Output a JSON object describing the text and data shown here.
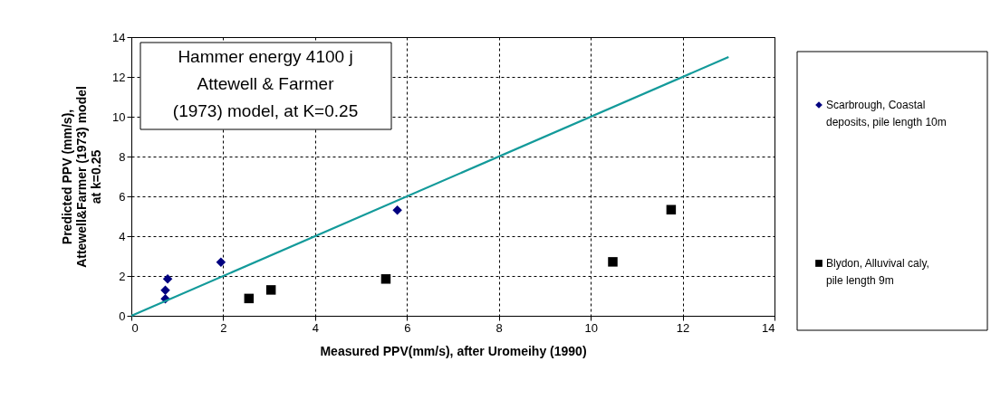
{
  "chart_data": {
    "type": "scatter",
    "xlabel": "Measured PPV(mm/s), after Uromeihy (1990)",
    "ylabel": "Predicted PPV (mm/s),\nAttewell&Farmer (1973) model\nat k=0.25",
    "annotations": [
      "Hammer energy 4100 j\nAttewell & Farmer\n(1973) model, at K=0.25"
    ],
    "series": [
      {
        "name": "Scarbrough, Coastal deposits, pile length 10m",
        "color": "#000080",
        "marker": "diamond",
        "x": [
          0.74,
          0.74,
          0.79,
          1.95,
          5.79
        ],
        "values": [
          0.85,
          1.28,
          1.85,
          2.69,
          5.31
        ]
      },
      {
        "name": "Blydon, Alluvival caly, pile length 9m",
        "color": "#000000",
        "marker": "square",
        "x": [
          2.56,
          3.04,
          5.54,
          10.48,
          11.75
        ],
        "values": [
          0.87,
          1.3,
          1.85,
          2.71,
          5.33
        ]
      },
      {
        "type": "line",
        "color": "#139a9a",
        "marker": "none",
        "x": [
          0,
          13
        ],
        "values": [
          0,
          13
        ]
      }
    ],
    "xlim": [
      0,
      14
    ],
    "xticks": [
      0,
      2,
      4,
      6,
      8,
      10,
      12,
      14
    ],
    "ylim": [
      0,
      14
    ],
    "yticks": [
      0,
      2,
      4,
      6,
      8,
      10,
      12,
      14
    ],
    "grid": true,
    "legend": "right"
  }
}
